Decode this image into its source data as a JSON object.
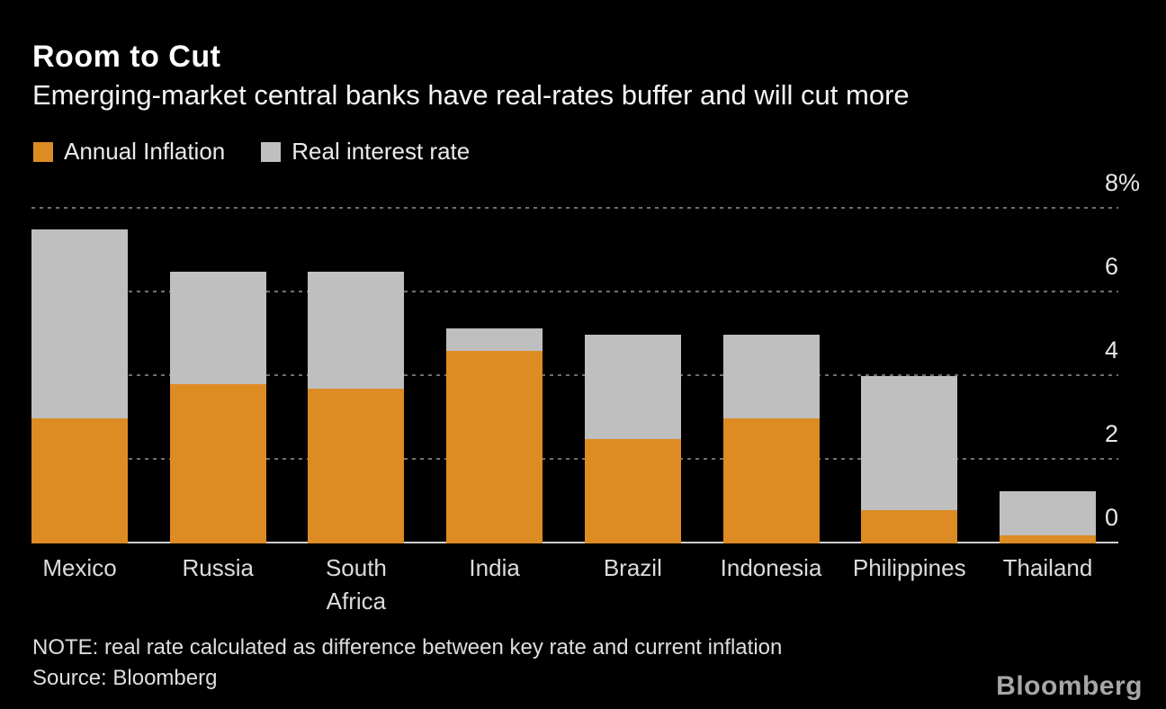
{
  "header": {
    "title": "Room to Cut",
    "subtitle": "Emerging-market central banks have real-rates buffer and will cut more"
  },
  "chart_data": {
    "type": "bar",
    "stacked": true,
    "title": "Room to Cut",
    "subtitle": "Emerging-market central banks have real-rates buffer and will cut more",
    "categories": [
      "Mexico",
      "Russia",
      "South\nAfrica",
      "India",
      "Brazil",
      "Indonesia",
      "Philippines",
      "Thailand"
    ],
    "series": [
      {
        "name": "Annual Inflation",
        "color": "#DD8B23",
        "values": [
          3.0,
          3.8,
          3.7,
          4.6,
          2.5,
          3.0,
          0.8,
          0.2
        ]
      },
      {
        "name": "Real interest rate",
        "color": "#BFBFBF",
        "values": [
          4.5,
          2.7,
          2.8,
          0.55,
          2.5,
          2.0,
          3.2,
          1.05
        ]
      }
    ],
    "totals_note": "segment totals equal policy key rate",
    "totals": [
      7.5,
      6.5,
      6.5,
      5.15,
      5.0,
      5.0,
      4.0,
      1.25
    ],
    "ylim": [
      0,
      8
    ],
    "yticks": {
      "values": [
        8,
        6,
        4,
        2,
        0
      ],
      "labels": [
        "8%",
        "6",
        "4",
        "2",
        "0"
      ]
    },
    "ytick_side": "right",
    "grid": "dashed-horizontal",
    "gridline_color": "#6F6F6F",
    "axis_line_color": "#CFCFCF",
    "background": "#000000",
    "legend_position": "top-left"
  },
  "footer": {
    "note": "NOTE: real rate calculated as difference between key rate and current inflation",
    "source": "Source: Bloomberg",
    "logo": "Bloomberg"
  }
}
